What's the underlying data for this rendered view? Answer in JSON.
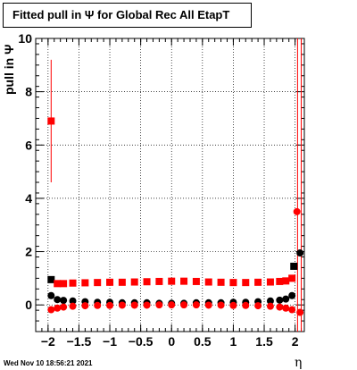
{
  "title": "Fitted pull in  Ψ  for Global Rec All EtapT",
  "timestamp": "Wed Nov 10 18:56:21 2021",
  "chart_data": {
    "type": "scatter",
    "title": "Fitted pull in  Ψ  for Global Rec All EtapT",
    "xlabel": "η",
    "ylabel": "pull in  Ψ",
    "xlim": [
      -2.2,
      2.15
    ],
    "ylim": [
      -1,
      10
    ],
    "grid": true,
    "x_ticks": [
      -2,
      -1.5,
      -1,
      -0.5,
      0,
      0.5,
      1,
      1.5,
      2
    ],
    "x_tick_labels": [
      "−2",
      "−1.5",
      "−1",
      "−0.5",
      "0",
      "0.5",
      "1",
      "1.5",
      "2"
    ],
    "y_ticks": [
      0,
      2,
      4,
      6,
      8,
      10
    ],
    "y_tick_labels": [
      "0",
      "2",
      "4",
      "6",
      "8",
      "10"
    ],
    "series": [
      {
        "color": "#000000",
        "marker": "circle",
        "role": "mean",
        "x": [
          -1.95,
          -1.85,
          -1.75,
          -1.6,
          -1.4,
          -1.2,
          -1.0,
          -0.8,
          -0.6,
          -0.4,
          -0.2,
          0.0,
          0.2,
          0.4,
          0.6,
          0.8,
          1.0,
          1.2,
          1.4,
          1.6,
          1.75,
          1.85,
          1.95,
          2.08
        ],
        "y": [
          0.35,
          0.2,
          0.17,
          0.15,
          0.12,
          0.1,
          0.1,
          0.08,
          0.08,
          0.08,
          0.06,
          0.06,
          0.06,
          0.08,
          0.08,
          0.08,
          0.1,
          0.1,
          0.12,
          0.15,
          0.18,
          0.22,
          0.35,
          1.95
        ]
      },
      {
        "color": "#000000",
        "marker": "square",
        "role": "sigma",
        "x": [
          -1.95,
          1.98
        ],
        "y": [
          0.95,
          1.45
        ]
      },
      {
        "color": "#ff0000",
        "marker": "square",
        "role": "sigma",
        "x": [
          -1.95,
          -1.85,
          -1.75,
          -1.6,
          -1.4,
          -1.2,
          -1.0,
          -0.8,
          -0.6,
          -0.4,
          -0.2,
          0.0,
          0.2,
          0.4,
          0.6,
          0.8,
          1.0,
          1.2,
          1.4,
          1.6,
          1.75,
          1.85,
          1.95
        ],
        "y": [
          6.9,
          0.8,
          0.8,
          0.82,
          0.83,
          0.84,
          0.85,
          0.85,
          0.86,
          0.87,
          0.88,
          0.89,
          0.89,
          0.88,
          0.86,
          0.85,
          0.84,
          0.84,
          0.85,
          0.86,
          0.88,
          0.9,
          1.0
        ],
        "error_bar_index": 0,
        "error_bar_y": [
          4.6,
          9.2
        ]
      },
      {
        "color": "#ff0000",
        "marker": "circle",
        "role": "mean",
        "x": [
          -1.95,
          -1.85,
          -1.75,
          -1.6,
          -1.4,
          -1.2,
          -1.0,
          -0.8,
          -0.6,
          -0.4,
          -0.2,
          0.0,
          0.2,
          0.4,
          0.6,
          0.8,
          1.0,
          1.2,
          1.4,
          1.6,
          1.75,
          1.85,
          1.95,
          2.03,
          2.08
        ],
        "y": [
          -0.18,
          -0.12,
          -0.08,
          -0.05,
          -0.03,
          -0.02,
          -0.02,
          -0.01,
          -0.01,
          -0.01,
          0.0,
          0.0,
          0.0,
          0.0,
          -0.01,
          -0.01,
          -0.02,
          -0.02,
          -0.03,
          -0.05,
          -0.08,
          -0.12,
          -0.18,
          3.5,
          -0.28
        ]
      }
    ],
    "vertical_lines": [
      {
        "x": 2.04,
        "color": "#ff0000"
      },
      {
        "x": 2.1,
        "color": "#ff0000"
      }
    ]
  }
}
